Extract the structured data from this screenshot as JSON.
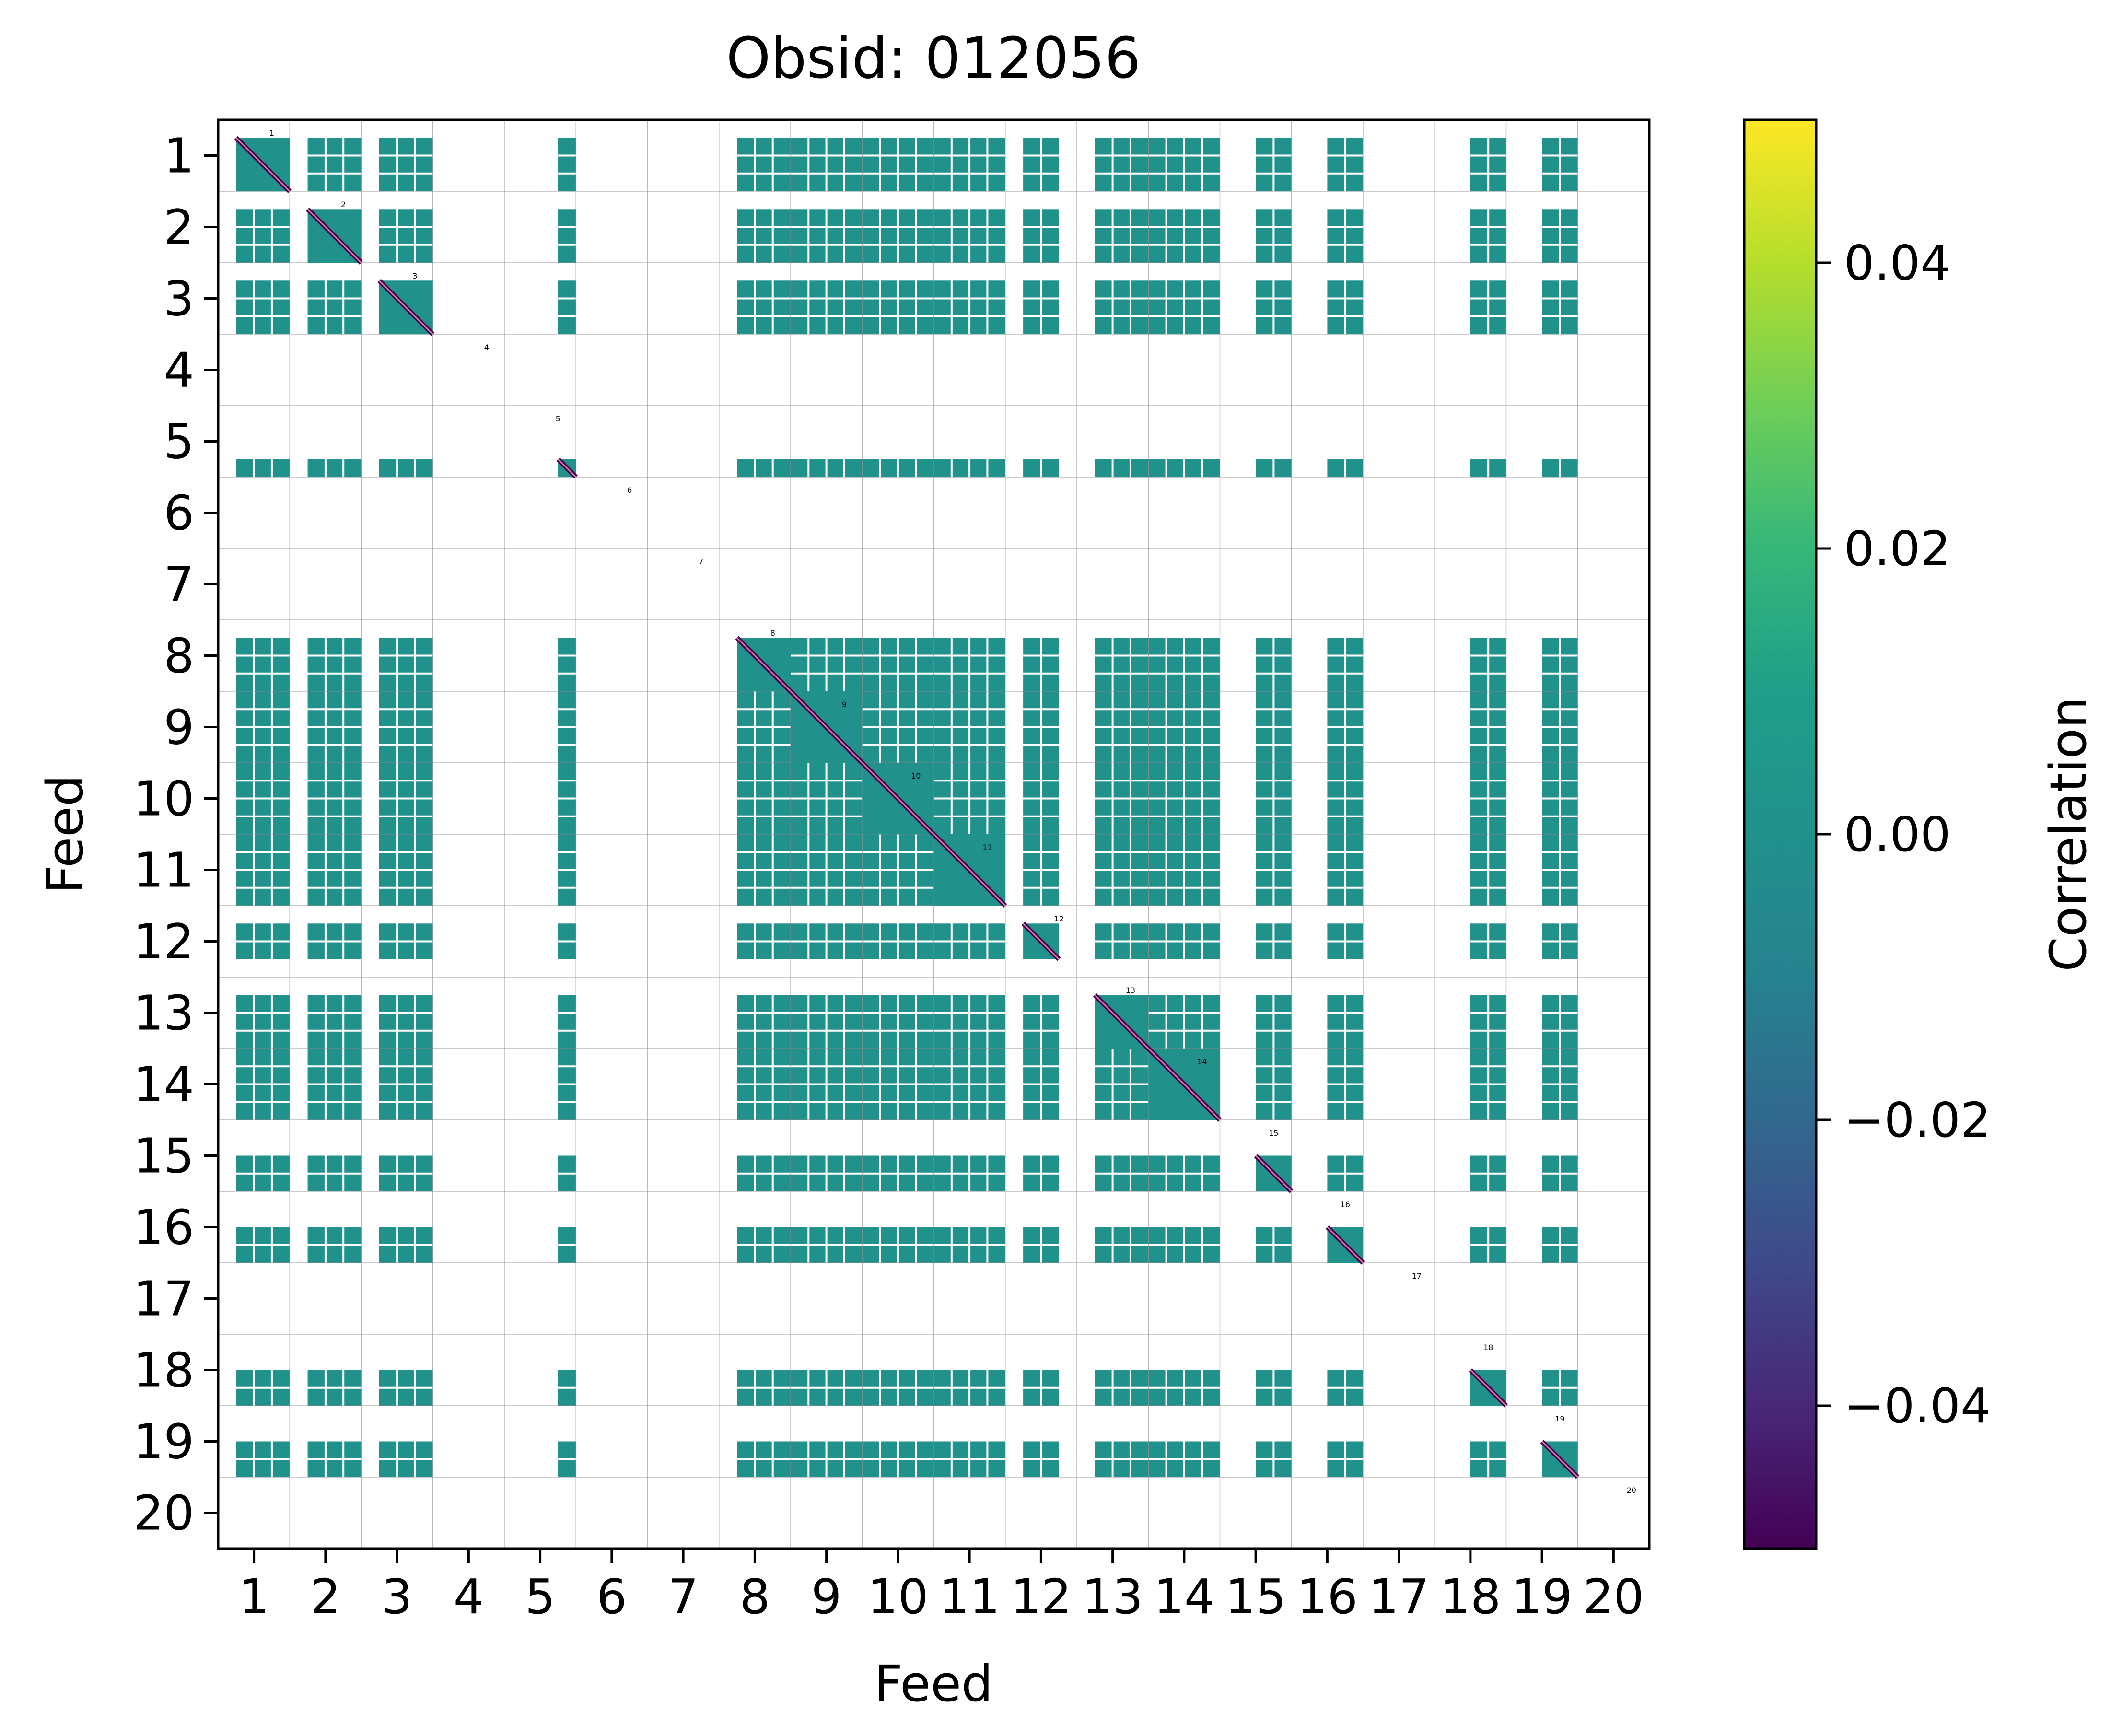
{
  "chart_data": {
    "type": "heatmap",
    "title": "Obsid: 012056",
    "xlabel": "Feed",
    "ylabel": "Feed",
    "feeds": [
      1,
      2,
      3,
      4,
      5,
      6,
      7,
      8,
      9,
      10,
      11,
      12,
      13,
      14,
      15,
      16,
      17,
      18,
      19,
      20
    ],
    "x_tick_labels": [
      "1",
      "2",
      "3",
      "4",
      "5",
      "6",
      "7",
      "8",
      "9",
      "10",
      "11",
      "12",
      "13",
      "14",
      "15",
      "16",
      "17",
      "18",
      "19",
      "20"
    ],
    "y_tick_labels": [
      "1",
      "2",
      "3",
      "4",
      "5",
      "6",
      "7",
      "8",
      "9",
      "10",
      "11",
      "12",
      "13",
      "14",
      "15",
      "16",
      "17",
      "18",
      "19",
      "20"
    ],
    "diagonal_labels": [
      "1",
      "2",
      "3",
      "4",
      "5",
      "6",
      "7",
      "8",
      "9",
      "10",
      "11",
      "12",
      "13",
      "14",
      "15",
      "16",
      "17",
      "18",
      "19",
      "20"
    ],
    "bands_per_feed": 4,
    "active_bands": {
      "1": [
        1,
        2,
        3
      ],
      "2": [
        1,
        2,
        3
      ],
      "3": [
        1,
        2,
        3
      ],
      "4": [],
      "5": [
        3
      ],
      "6": [],
      "7": [],
      "8": [
        1,
        2,
        3
      ],
      "9": [
        0,
        1,
        2,
        3
      ],
      "10": [
        0,
        1,
        2,
        3
      ],
      "11": [
        0,
        1,
        2,
        3
      ],
      "12": [
        1,
        2
      ],
      "13": [
        1,
        2,
        3
      ],
      "14": [
        0,
        1,
        2,
        3
      ],
      "15": [
        2,
        3
      ],
      "16": [
        2,
        3
      ],
      "17": [],
      "18": [
        2,
        3
      ],
      "19": [
        2,
        3
      ],
      "20": []
    },
    "grid": true,
    "colormap": "viridis",
    "off_diagonal_value": 0.0,
    "diagonal_value": -0.05,
    "colorbar": {
      "label": "Correlation",
      "vmin": -0.05,
      "vmax": 0.05,
      "ticks": [
        -0.04,
        -0.02,
        0.0,
        0.02,
        0.04
      ],
      "tick_labels": [
        "−0.04",
        "−0.02",
        "0.00",
        "0.02",
        "0.04"
      ]
    }
  }
}
